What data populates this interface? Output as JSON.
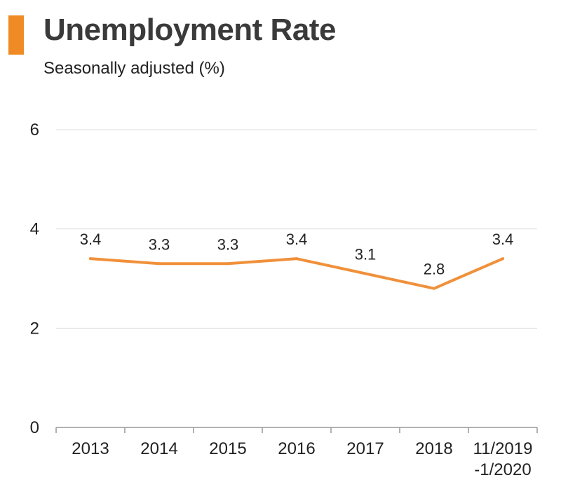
{
  "header": {
    "title": "Unemployment Rate",
    "subtitle": "Seasonally adjusted (%)"
  },
  "colors": {
    "accent": "#f08a24",
    "line": "#f0903a",
    "grid": "#dddddd",
    "axis": "#999999"
  },
  "chart_data": {
    "type": "line",
    "title": "Unemployment Rate",
    "subtitle": "Seasonally adjusted (%)",
    "categories": [
      "2013",
      "2014",
      "2015",
      "2016",
      "2017",
      "2018",
      "11/2019\n-1/2020"
    ],
    "series": [
      {
        "values": [
          3.4,
          3.3,
          3.3,
          3.4,
          3.1,
          2.8,
          3.4
        ]
      }
    ],
    "data_labels": [
      "3.4",
      "3.3",
      "3.3",
      "3.4",
      "3.1",
      "2.8",
      "3.4"
    ],
    "yticks": [
      0,
      2,
      4,
      6
    ],
    "ylim": [
      0,
      6
    ],
    "grid": true,
    "legend": "none"
  }
}
